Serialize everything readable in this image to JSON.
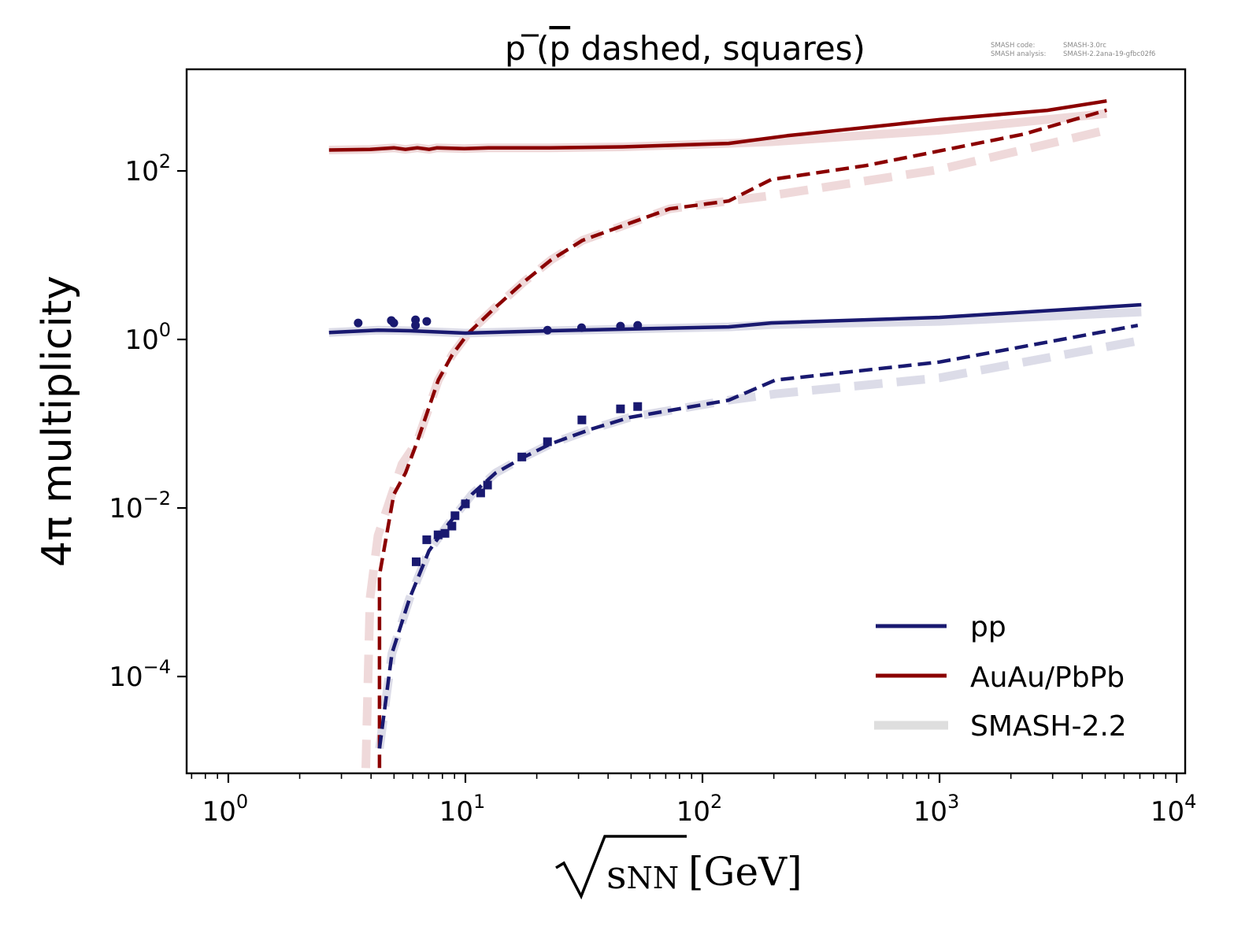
{
  "chart_data": {
    "type": "line",
    "title": "p (p̄ dashed, squares)",
    "title_parts": {
      "prefix": "p (",
      "pbar": "p",
      "suffix": " dashed, squares)"
    },
    "annotation": {
      "line1_key": "SMASH code:",
      "line1_val": "SMASH-3.0rc",
      "line2_key": "SMASH analysis:",
      "line2_val": "SMASH-2.2ana-19-gfbc02f6"
    },
    "xlabel": "√sNN [GeV]",
    "xlabel_parts": {
      "sqrt": "√",
      "s": "s",
      "sub": "NN",
      "unit": "[GeV]"
    },
    "ylabel": "4π multiplicity",
    "xscale": "log",
    "yscale": "log",
    "xlim": [
      0.667,
      10870
    ],
    "ylim": [
      7.1e-06,
      1607
    ],
    "x_ticks": [
      {
        "value": 1,
        "base": "10",
        "exp": "0"
      },
      {
        "value": 10,
        "base": "10",
        "exp": "1"
      },
      {
        "value": 100,
        "base": "10",
        "exp": "2"
      },
      {
        "value": 1000,
        "base": "10",
        "exp": "3"
      },
      {
        "value": 10000,
        "base": "10",
        "exp": "4"
      }
    ],
    "y_ticks": [
      {
        "value": 100,
        "base": "10",
        "exp": "2"
      },
      {
        "value": 1,
        "base": "10",
        "exp": "0"
      },
      {
        "value": 0.01,
        "base": "10",
        "exp": "−2"
      },
      {
        "value": 0.0001,
        "base": "10",
        "exp": "−4"
      }
    ],
    "grid": false,
    "legend": {
      "position": "bottom-right",
      "entries": [
        {
          "label": "pp",
          "color": "#191970",
          "style": "solid"
        },
        {
          "label": "AuAu/PbPb",
          "color": "#8b0000",
          "style": "solid"
        },
        {
          "label": "SMASH-2.2",
          "color": "#dcdcdc",
          "style": "thick-band"
        }
      ]
    },
    "colors": {
      "pp": "#191970",
      "AA": "#8b0000",
      "pp_ref": "#dcdce8",
      "AA_ref": "#efd9da"
    },
    "series": [
      {
        "name": "AuAu/PbPb p SMASH-2.2",
        "system": "AA",
        "particle": "p",
        "version": "SMASH-2.2",
        "style": "ref-solid",
        "x": [
          2.66,
          3.96,
          4.99,
          5.59,
          6.27,
          7.03,
          7.6,
          9.9,
          12.5,
          16.7,
          22.6,
          46,
          129,
          195,
          1000,
          5070
        ],
        "y": [
          177,
          180,
          188,
          180,
          188,
          180,
          188,
          184,
          188,
          188,
          188,
          193,
          212,
          222,
          304,
          480
        ]
      },
      {
        "name": "AuAu/PbPb p̄ SMASH-2.2",
        "system": "AA",
        "particle": "pbar",
        "version": "SMASH-2.2",
        "style": "ref-dashed",
        "x": [
          3.8,
          3.96,
          4.28,
          5.4,
          6.27,
          7.69,
          8.8,
          10.3,
          13.4,
          17.6,
          23,
          31.2,
          49.4,
          72.6,
          129,
          195,
          1000,
          5070
        ],
        "y": [
          8.2e-06,
          0.00085,
          0.0047,
          0.033,
          0.062,
          0.33,
          0.66,
          1.19,
          2.41,
          4.8,
          8.8,
          15,
          24,
          35.5,
          44,
          51,
          104,
          305
        ]
      },
      {
        "name": "pp p SMASH-2.2",
        "system": "pp",
        "particle": "p",
        "version": "SMASH-2.2",
        "style": "ref-solid",
        "x": [
          2.66,
          4.28,
          5.81,
          10,
          23,
          129,
          195,
          1000,
          7100
        ],
        "y": [
          1.21,
          1.29,
          1.27,
          1.19,
          1.27,
          1.41,
          1.5,
          1.64,
          2.12
        ]
      },
      {
        "name": "pp p̄ SMASH-2.2",
        "system": "pp",
        "particle": "pbar",
        "version": "SMASH-2.2",
        "style": "ref-dashed",
        "x": [
          4.34,
          4.9,
          5.81,
          7.02,
          8.5,
          10.7,
          13.4,
          17.6,
          23,
          33.8,
          49.4,
          129,
          203,
          1000,
          6860
        ],
        "y": [
          1.4e-05,
          0.000188,
          0.00084,
          0.0031,
          0.0065,
          0.0147,
          0.026,
          0.04,
          0.058,
          0.086,
          0.119,
          0.19,
          0.226,
          0.35,
          0.96
        ]
      },
      {
        "name": "AuAu/PbPb p",
        "system": "AA",
        "particle": "p",
        "version": "SMASH-3.0",
        "style": "solid",
        "x": [
          2.66,
          3.96,
          4.99,
          5.59,
          6.27,
          7.03,
          7.6,
          9.9,
          12.5,
          16.7,
          22.6,
          46,
          129,
          228,
          1000,
          2850,
          5070
        ],
        "y": [
          177,
          180,
          188,
          180,
          188,
          180,
          188,
          184,
          188,
          188,
          188,
          193,
          212,
          262,
          406,
          524,
          676
        ]
      },
      {
        "name": "AuAu/PbPb p̄",
        "system": "AA",
        "particle": "pbar",
        "version": "SMASH-3.0",
        "style": "dashed",
        "x": [
          4.34,
          4.34,
          4.99,
          5.59,
          6.27,
          7.69,
          8.8,
          10.3,
          13.4,
          17.6,
          23,
          31.2,
          49.4,
          72.6,
          129,
          195,
          490,
          2260,
          5070
        ],
        "y": [
          8.2e-06,
          0.0016,
          0.0145,
          0.026,
          0.062,
          0.33,
          0.66,
          1.19,
          2.41,
          4.8,
          8.8,
          15,
          24,
          35.5,
          44,
          79,
          116,
          273,
          526
        ]
      },
      {
        "name": "pp p",
        "system": "pp",
        "particle": "p",
        "version": "SMASH-3.0",
        "style": "solid",
        "x": [
          2.66,
          4.28,
          5.81,
          10,
          23,
          129,
          195,
          1000,
          7100
        ],
        "y": [
          1.21,
          1.29,
          1.27,
          1.19,
          1.27,
          1.41,
          1.57,
          1.83,
          2.58
        ]
      },
      {
        "name": "pp p̄",
        "system": "pp",
        "particle": "pbar",
        "version": "SMASH-3.0",
        "style": "dashed",
        "x": [
          4.34,
          4.9,
          5.81,
          7.02,
          8.5,
          10.7,
          13.4,
          17.6,
          23,
          33.8,
          49.4,
          129,
          203,
          1000,
          6860
        ],
        "y": [
          1.4e-05,
          0.000188,
          0.00084,
          0.0031,
          0.0065,
          0.0147,
          0.026,
          0.04,
          0.058,
          0.086,
          0.119,
          0.19,
          0.33,
          0.54,
          1.47
        ]
      }
    ],
    "data_points": [
      {
        "name": "pp p data",
        "marker": "circle",
        "color": "#191970",
        "x": [
          3.53,
          4.87,
          4.99,
          6.16,
          6.16,
          6.87,
          22.2,
          30.9,
          45.1,
          53.3
        ],
        "y": [
          1.57,
          1.68,
          1.57,
          1.71,
          1.47,
          1.64,
          1.29,
          1.38,
          1.44,
          1.47
        ]
      },
      {
        "name": "pp p̄ data",
        "marker": "square",
        "color": "#191970",
        "x": [
          6.2,
          6.87,
          7.67,
          8.2,
          8.77,
          9.04,
          10,
          11.6,
          12.4,
          17.3,
          22.2,
          31,
          45.1,
          53.3
        ],
        "y": [
          0.0023,
          0.0042,
          0.0048,
          0.005,
          0.0061,
          0.0081,
          0.0112,
          0.0151,
          0.0187,
          0.0403,
          0.0611,
          0.111,
          0.15,
          0.16
        ]
      }
    ]
  }
}
